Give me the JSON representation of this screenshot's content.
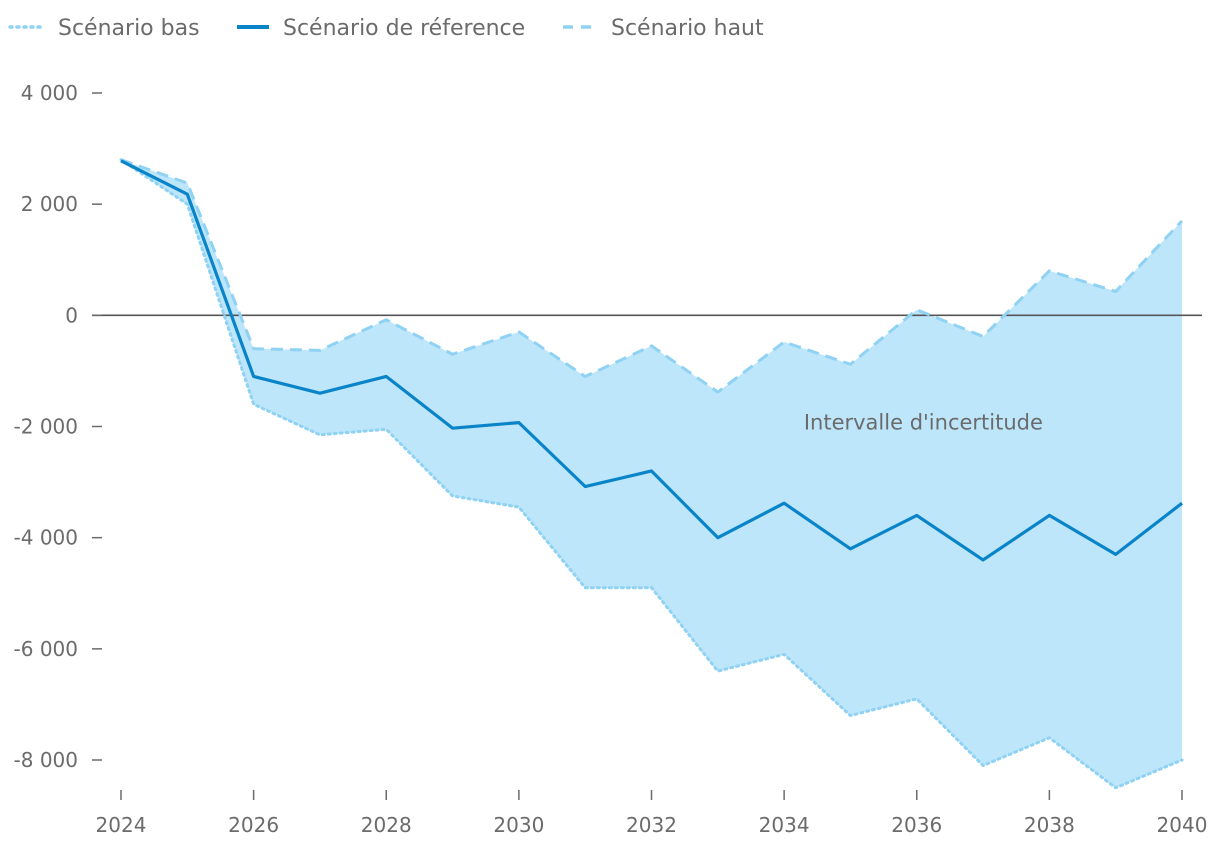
{
  "chart_data": {
    "type": "line",
    "title": "",
    "xlabel": "",
    "ylabel": "",
    "x": [
      2024,
      2025,
      2026,
      2027,
      2028,
      2029,
      2030,
      2031,
      2032,
      2033,
      2034,
      2035,
      2036,
      2037,
      2038,
      2039,
      2040
    ],
    "xlim": [
      2024,
      2040
    ],
    "ylim": [
      -8600,
      4000
    ],
    "x_ticks": [
      2024,
      2026,
      2028,
      2030,
      2032,
      2034,
      2036,
      2038,
      2040
    ],
    "x_tick_labels": [
      "2024",
      "2026",
      "2028",
      "2030",
      "2032",
      "2034",
      "2036",
      "2038",
      "2040"
    ],
    "y_ticks": [
      4000,
      2000,
      0,
      -2000,
      -4000,
      -6000,
      -8000
    ],
    "y_tick_labels": [
      "4 000",
      "2 000",
      "0",
      "-2 000",
      "-4 000",
      "-6 000",
      "-8 000"
    ],
    "grid": false,
    "legend_position": "top-left",
    "series": [
      {
        "name": "Scénario bas",
        "style": "dotted",
        "color": "#8fd2f3",
        "values": [
          2800,
          2000,
          -1600,
          -2150,
          -2050,
          -3250,
          -3450,
          -4900,
          -4900,
          -6400,
          -6100,
          -7200,
          -6900,
          -8100,
          -7600,
          -8500,
          -8000
        ]
      },
      {
        "name": "Scénario de réference",
        "style": "solid",
        "color": "#0a84c8",
        "values": [
          2780,
          2180,
          -1100,
          -1400,
          -1100,
          -2030,
          -1930,
          -3080,
          -2800,
          -4000,
          -3380,
          -4200,
          -3600,
          -4400,
          -3600,
          -4300,
          -3380
        ]
      },
      {
        "name": "Scénario haut",
        "style": "dashed",
        "color": "#8fd2f3",
        "values": [
          2800,
          2380,
          -600,
          -630,
          -80,
          -700,
          -300,
          -1100,
          -550,
          -1380,
          -480,
          -880,
          100,
          -380,
          800,
          430,
          1700
        ]
      }
    ],
    "band": {
      "lower_series": "Scénario bas",
      "upper_series": "Scénario haut",
      "color": "#bde6fa"
    },
    "annotations": [
      {
        "text": "Intervalle d'incertitude",
        "x": 2036.1,
        "y": -2050
      }
    ],
    "zero_line_color": "#555555"
  }
}
